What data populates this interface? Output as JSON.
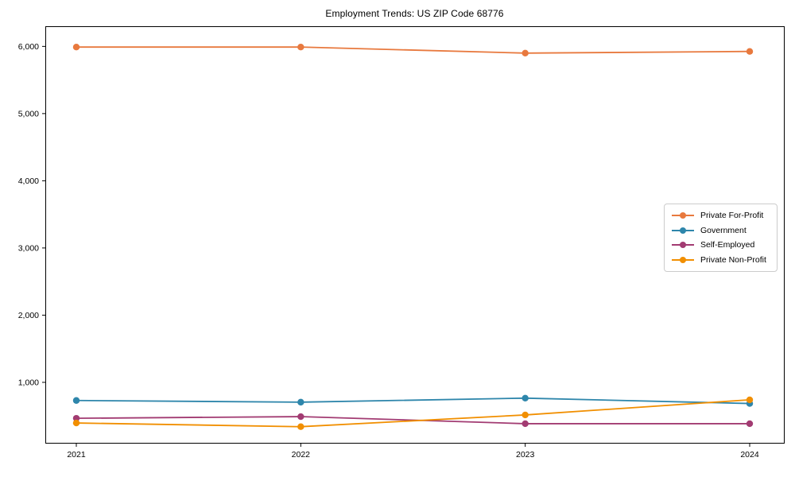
{
  "chart_data": {
    "type": "line",
    "title": "Employment Trends: US ZIP Code 68776",
    "x": [
      2021,
      2022,
      2023,
      2024
    ],
    "xtick_labels": [
      "2021",
      "2022",
      "2023",
      "2024"
    ],
    "yticks": [
      1000,
      2000,
      3000,
      4000,
      5000,
      6000
    ],
    "ytick_labels": [
      "1,000",
      "2,000",
      "3,000",
      "4,000",
      "5,000",
      "6,000"
    ],
    "ylim": [
      100,
      6300
    ],
    "xlabel": "",
    "ylabel": "",
    "grid": false,
    "legend_position": "center-right",
    "marker": "circle",
    "axis_color": "#000000",
    "series": [
      {
        "name": "Private For-Profit",
        "color": "#E8793E",
        "values": [
          5990,
          5990,
          5900,
          5925
        ]
      },
      {
        "name": "Government",
        "color": "#2E86AB",
        "values": [
          730,
          705,
          765,
          685
        ]
      },
      {
        "name": "Self-Employed",
        "color": "#A23B72",
        "values": [
          465,
          490,
          385,
          385
        ]
      },
      {
        "name": "Private Non-Profit",
        "color": "#F18F01",
        "values": [
          395,
          340,
          515,
          740
        ]
      }
    ]
  }
}
